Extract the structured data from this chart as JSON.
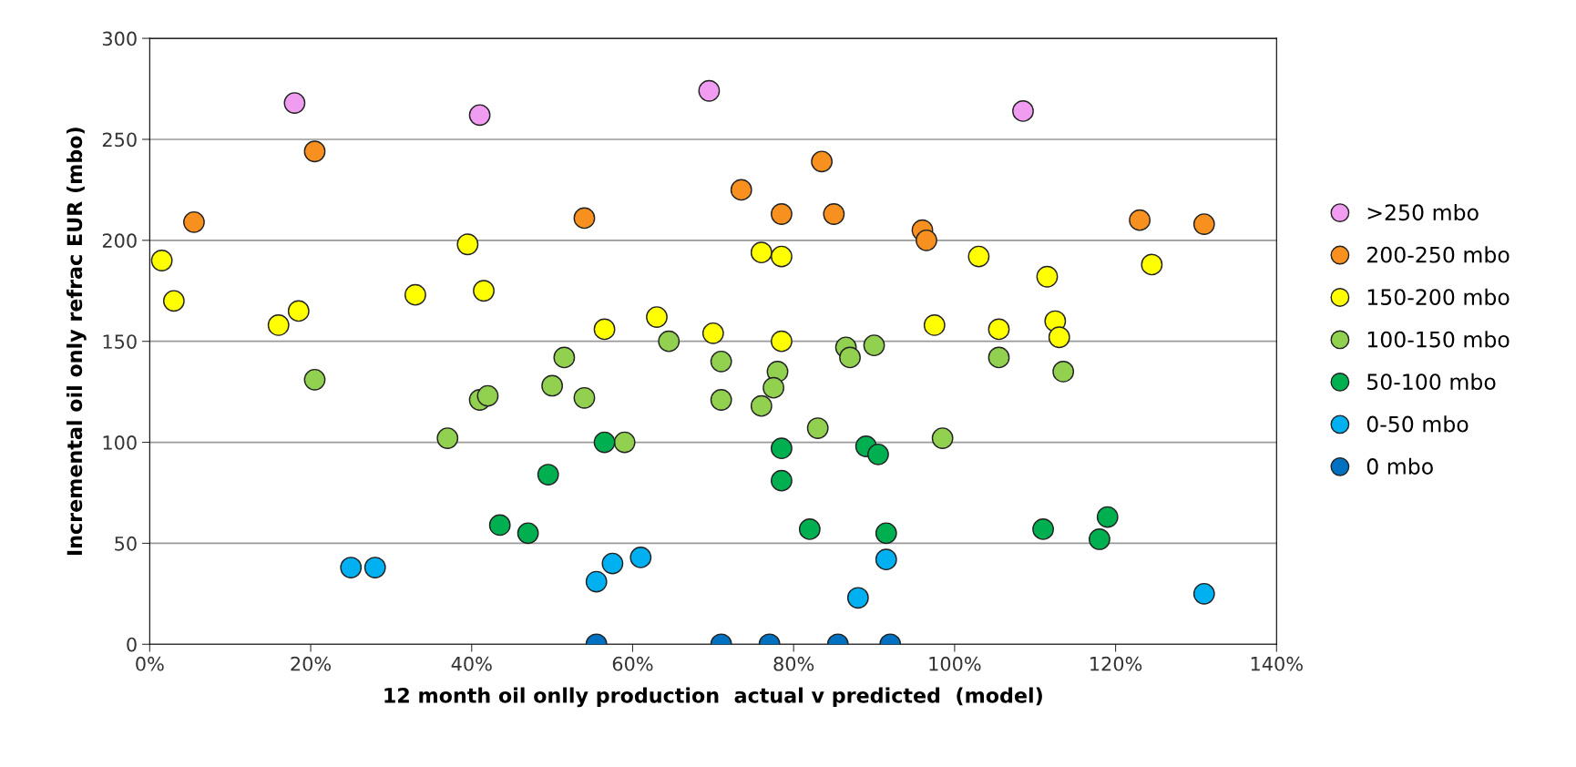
{
  "chart_data": {
    "type": "scatter",
    "xlabel": "12 month oil onlly production  actual v predicted  (model)",
    "ylabel": "Incremental oil only refrac EUR (mbo)",
    "xlim": [
      0,
      140
    ],
    "ylim": [
      0,
      300
    ],
    "xticks": [
      {
        "value": 0,
        "label": "0%"
      },
      {
        "value": 20,
        "label": "20%"
      },
      {
        "value": 40,
        "label": "40%"
      },
      {
        "value": 60,
        "label": "60%"
      },
      {
        "value": 80,
        "label": "80%"
      },
      {
        "value": 100,
        "label": "100%"
      },
      {
        "value": 120,
        "label": "120%"
      },
      {
        "value": 140,
        "label": "140%"
      }
    ],
    "yticks": [
      0,
      50,
      100,
      150,
      200,
      250,
      300
    ],
    "grid": "y",
    "legend": "right",
    "marker": "circle",
    "series": [
      {
        "name": ">250 mbo",
        "color": "#f09cf0",
        "x": [
          18,
          41,
          69.5,
          108.5
        ],
        "values": [
          268,
          262,
          274,
          264
        ]
      },
      {
        "name": "200-250 mbo",
        "color": "#f7901e",
        "x": [
          5.5,
          20.5,
          54,
          73.5,
          78.5,
          83.5,
          85,
          96,
          96.5,
          123,
          131
        ],
        "values": [
          209,
          244,
          211,
          225,
          213,
          239,
          213,
          205,
          200,
          210,
          208
        ]
      },
      {
        "name": "150-200 mbo",
        "color": "#ffff00",
        "x": [
          1.5,
          3,
          16,
          18.5,
          33,
          39.5,
          41.5,
          56.5,
          63,
          70,
          76,
          78.5,
          78.5,
          97.5,
          103,
          105.5,
          111.5,
          112.5,
          113,
          124.5
        ],
        "values": [
          190,
          170,
          158,
          165,
          173,
          198,
          175,
          156,
          162,
          154,
          194,
          192,
          150,
          158,
          192,
          156,
          182,
          160,
          152,
          188
        ]
      },
      {
        "name": "100-150 mbo",
        "color": "#92d050",
        "x": [
          20.5,
          37,
          41,
          42,
          50,
          51.5,
          54,
          59,
          64.5,
          71,
          71,
          76,
          78,
          77.5,
          83,
          86.5,
          87,
          90,
          98.5,
          105.5,
          113.5
        ],
        "values": [
          131,
          102,
          121,
          123,
          128,
          142,
          122,
          100,
          150,
          140,
          121,
          118,
          135,
          127,
          107,
          147,
          142,
          148,
          102,
          142,
          135
        ]
      },
      {
        "name": "50-100 mbo",
        "color": "#00b050",
        "x": [
          43.5,
          47,
          49.5,
          56.5,
          78.5,
          78.5,
          82,
          89,
          90.5,
          91.5,
          111,
          118,
          119
        ],
        "values": [
          59,
          55,
          84,
          100,
          97,
          81,
          57,
          98,
          94,
          55,
          57,
          52,
          63
        ]
      },
      {
        "name": "0-50 mbo",
        "color": "#00b0f0",
        "x": [
          25,
          28,
          55.5,
          57.5,
          61,
          88,
          91.5,
          131
        ],
        "values": [
          38,
          38,
          31,
          40,
          43,
          23,
          42,
          25
        ]
      },
      {
        "name": "0 mbo",
        "color": "#0070c0",
        "x": [
          55.5,
          71,
          77,
          85.5,
          92
        ],
        "values": [
          0,
          0,
          0,
          0,
          0
        ]
      }
    ]
  }
}
